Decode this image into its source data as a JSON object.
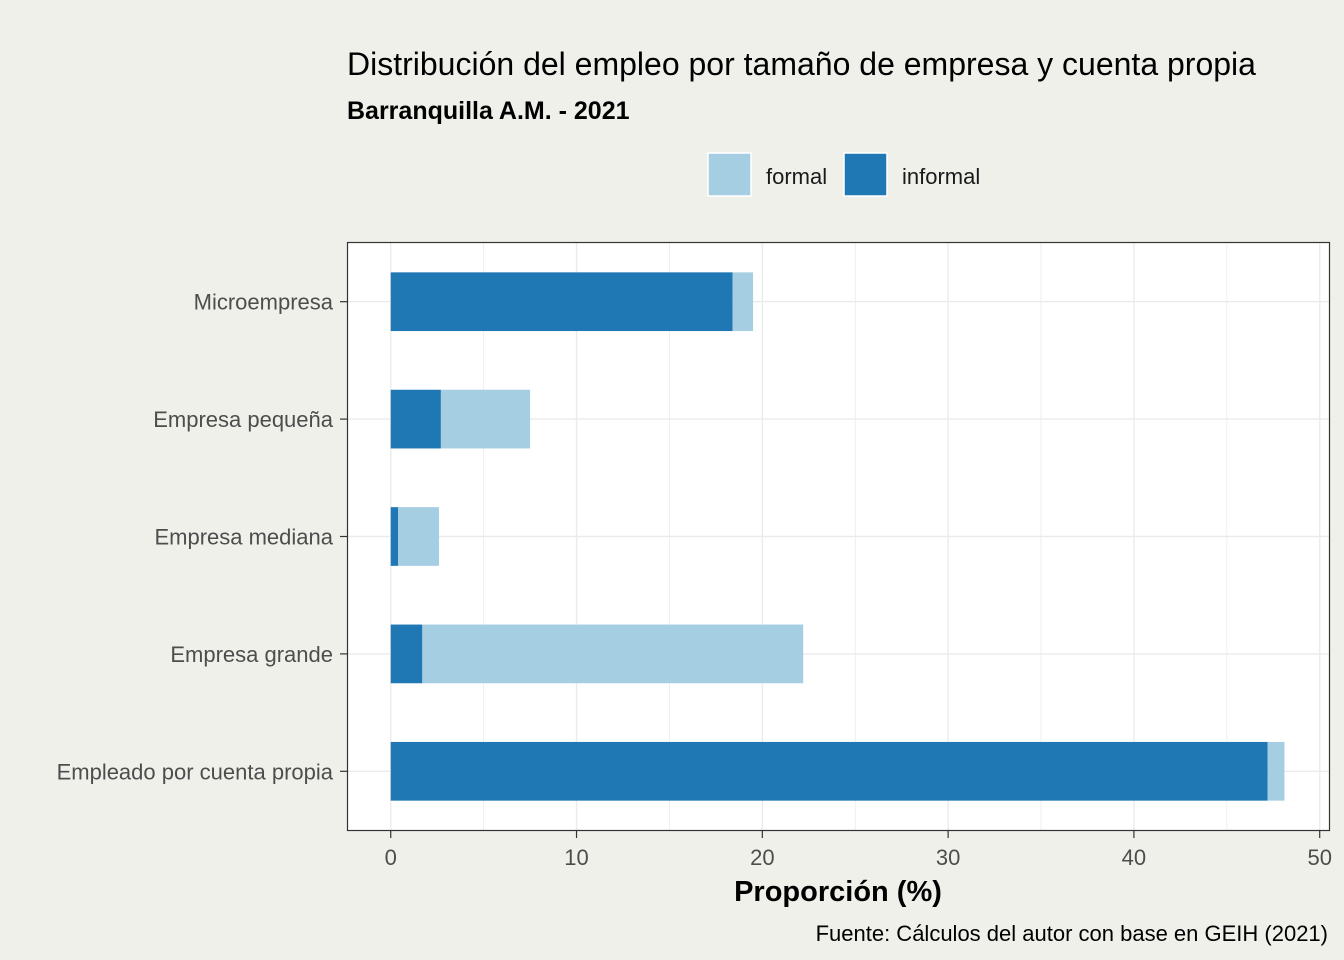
{
  "chart_data": {
    "type": "bar",
    "orientation": "horizontal",
    "stacked": true,
    "title": "Distribución del empleo por tamaño de empresa y cuenta propia",
    "subtitle": "Barranquilla A.M. - 2021",
    "xlabel": "Proporción (%)",
    "ylabel": "",
    "caption": "Fuente: Cálculos del autor con base en GEIH (2021)",
    "xlim": [
      -2.3,
      50.5
    ],
    "xticks": [
      0,
      10,
      20,
      30,
      40,
      50
    ],
    "grid": true,
    "legend_position": "top",
    "categories": [
      "Microempresa",
      "Empresa pequeña",
      "Empresa mediana",
      "Empresa grande",
      "Empleado por cuenta propia"
    ],
    "series": [
      {
        "name": "informal",
        "color": "#1f78b4",
        "values": [
          18.4,
          2.7,
          0.4,
          1.7,
          47.2
        ]
      },
      {
        "name": "formal",
        "color": "#a6cee3",
        "values": [
          1.1,
          4.8,
          2.2,
          20.5,
          0.9
        ]
      }
    ],
    "legend": [
      {
        "name": "formal",
        "color": "#a6cee3"
      },
      {
        "name": "informal",
        "color": "#1f78b4"
      }
    ]
  }
}
